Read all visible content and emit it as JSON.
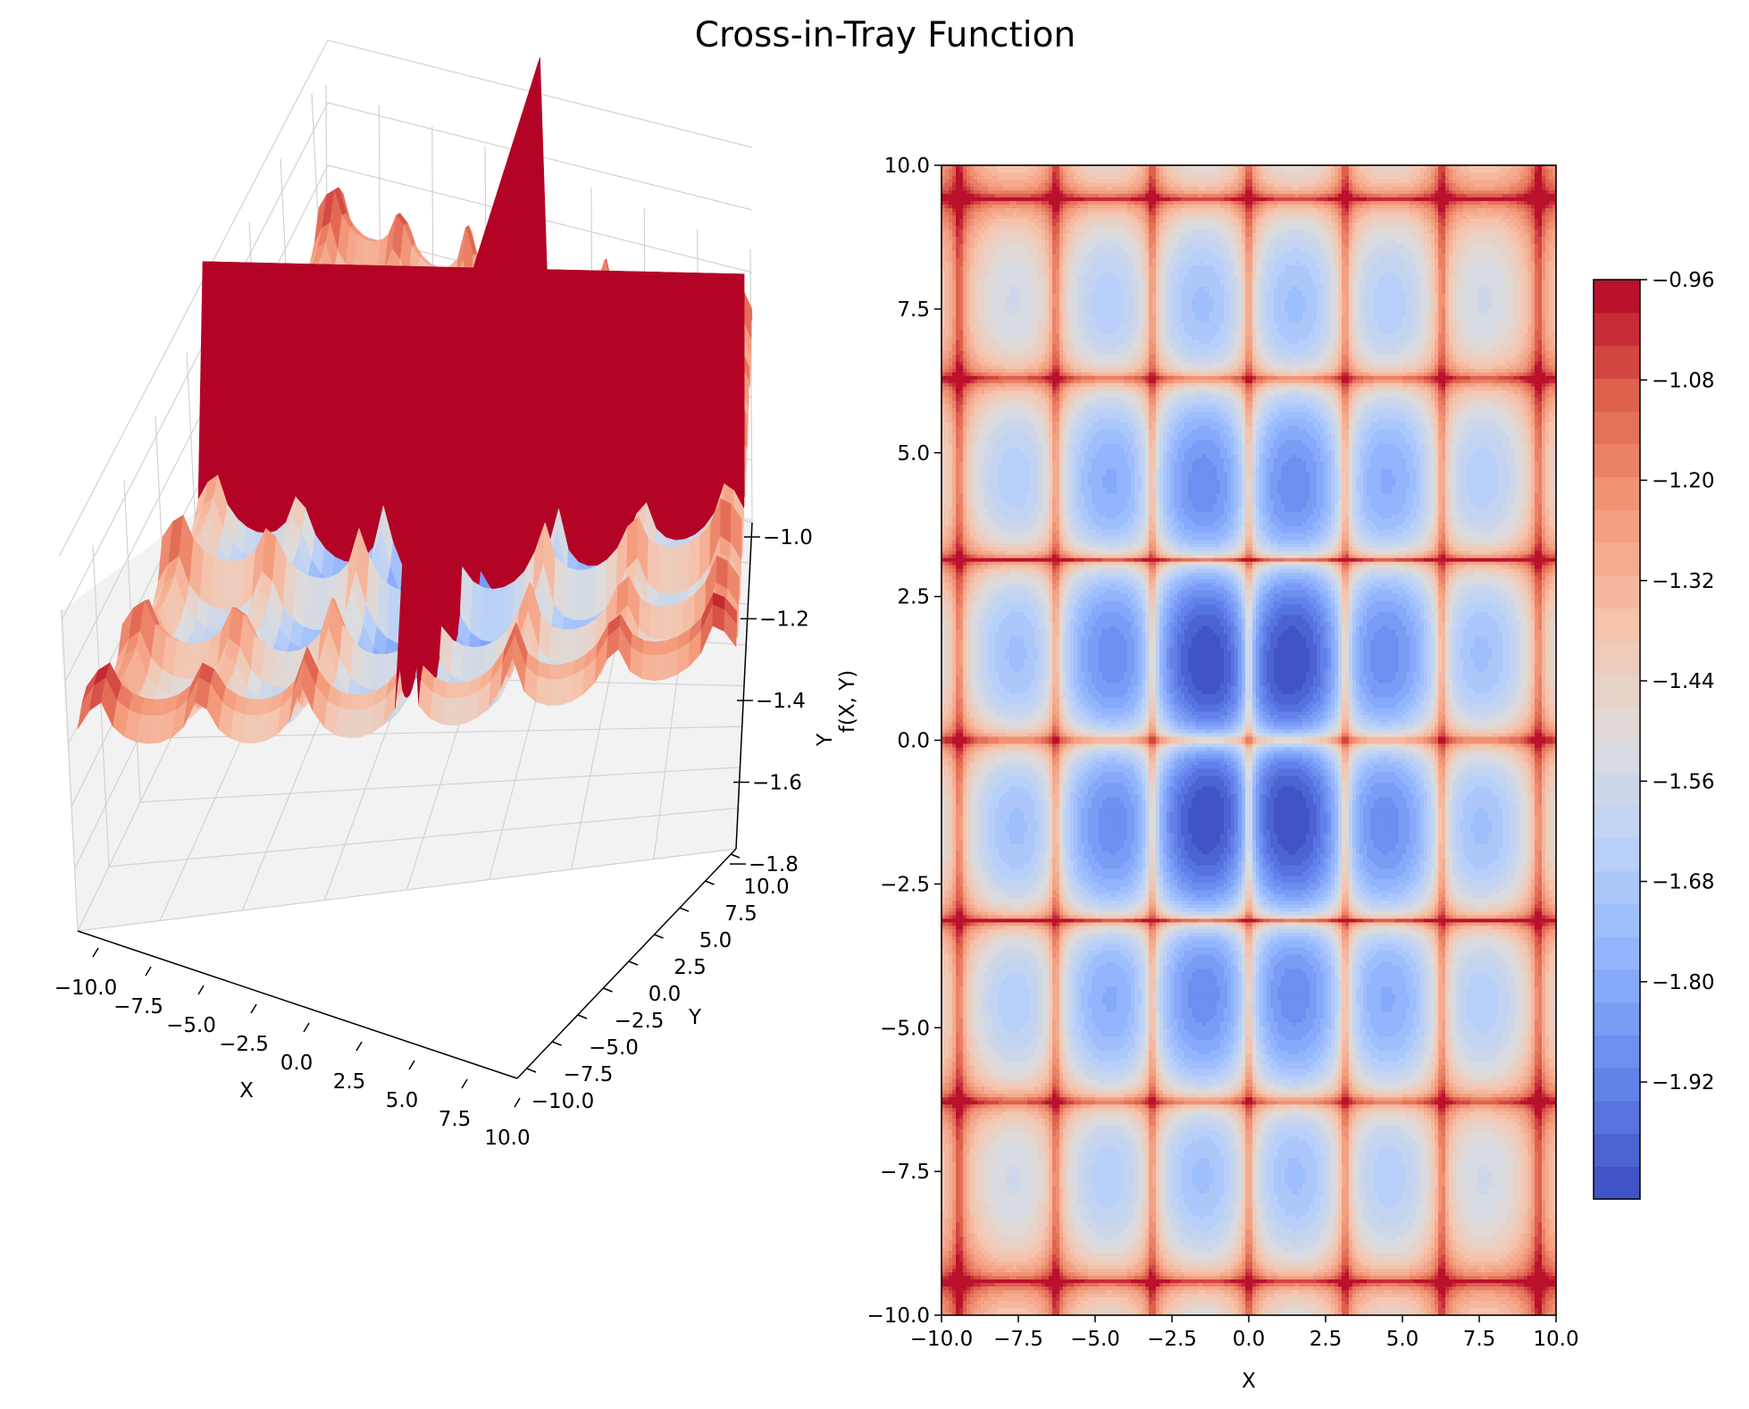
{
  "figure": {
    "title": "Cross-in-Tray Function"
  },
  "chart_data": [
    {
      "type": "surface3d",
      "function": "cross-in-tray",
      "colormap": "coolwarm",
      "xlabel": "X",
      "ylabel": "Y",
      "zlabel": "f(X, Y)",
      "xlim": [
        -10,
        10
      ],
      "ylim": [
        -10,
        10
      ],
      "zlim": [
        -2.06,
        -0.96
      ],
      "xticks": [
        "−10.0",
        "−7.5",
        "−5.0",
        "−2.5",
        "0.0",
        "2.5",
        "5.0",
        "7.5",
        "10.0"
      ],
      "yticks": [
        "−10.0",
        "−7.5",
        "−5.0",
        "−2.5",
        "0.0",
        "2.5",
        "5.0",
        "7.5",
        "10.0"
      ],
      "zticks": [
        "−1.0",
        "−1.2",
        "−1.4",
        "−1.6",
        "−1.8"
      ],
      "stray_label": "Y"
    },
    {
      "type": "heatmap",
      "subtype": "filled-contour",
      "function": "cross-in-tray",
      "colormap": "coolwarm",
      "xlabel": "X",
      "ylabel": "",
      "xlim": [
        -10,
        10
      ],
      "ylim": [
        -10,
        10
      ],
      "xticks": [
        "−10.0",
        "−7.5",
        "−5.0",
        "−2.5",
        "0.0",
        "2.5",
        "5.0",
        "7.5",
        "10.0"
      ],
      "yticks": [
        "−10.0",
        "−7.5",
        "−5.0",
        "−2.5",
        "0.0",
        "2.5",
        "5.0",
        "7.5",
        "10.0"
      ],
      "colorbar": {
        "range": [
          -2.06,
          -0.96
        ],
        "levels": 28,
        "ticks": [
          "−0.96",
          "−1.08",
          "−1.20",
          "−1.32",
          "−1.44",
          "−1.56",
          "−1.68",
          "−1.80",
          "−1.92"
        ]
      }
    }
  ]
}
